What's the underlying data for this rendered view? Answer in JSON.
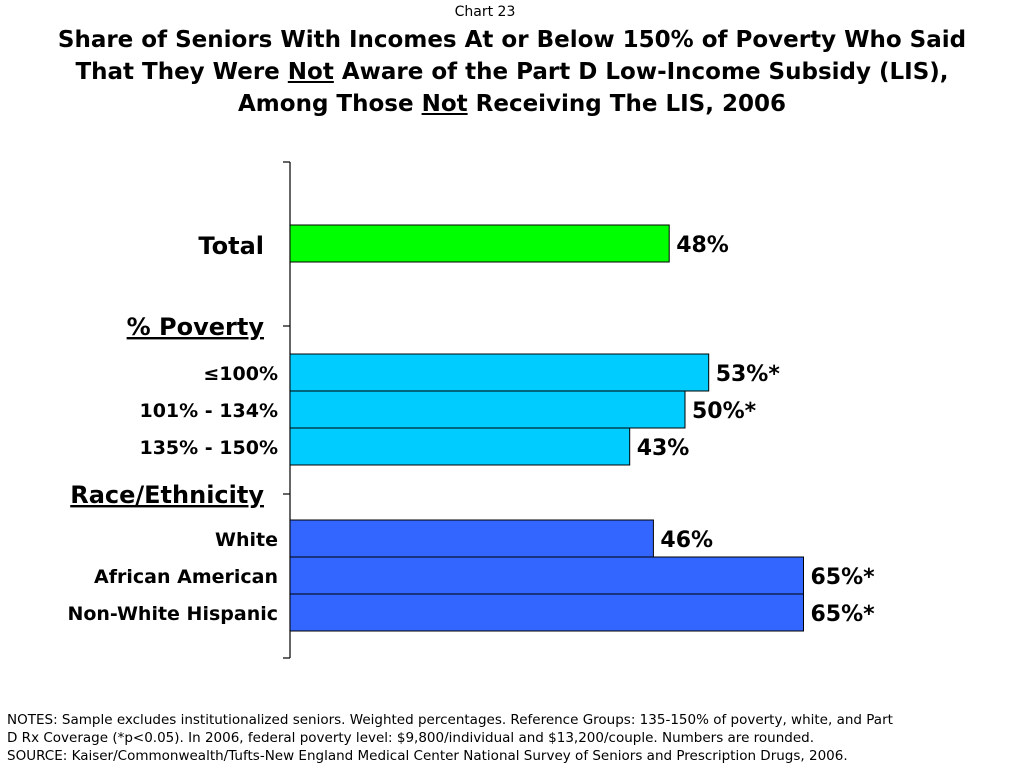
{
  "chart_label": "Chart 23",
  "title": {
    "line1": "Share of Seniors With Incomes At or Below 150% of Poverty Who Said",
    "line2_pre": "That They Were ",
    "line2_em": "Not",
    "line2_post": " Aware of the Part D Low-Income Subsidy (LIS),",
    "line3_pre": "Among Those ",
    "line3_em": "Not",
    "line3_post": " Receiving The LIS, 2006"
  },
  "chart_data": {
    "type": "bar",
    "orientation": "horizontal",
    "sections": [
      {
        "heading": "",
        "color": "#00FF00",
        "bars": [
          {
            "label": "Total",
            "value": 48,
            "display": "48%"
          }
        ]
      },
      {
        "heading": "% Poverty",
        "color": "#00CCFF",
        "bars": [
          {
            "label": "≤100%",
            "value": 53,
            "display": "53%*"
          },
          {
            "label": "101% - 134%",
            "value": 50,
            "display": "50%*"
          },
          {
            "label": "135% - 150%",
            "value": 43,
            "display": "43%"
          }
        ]
      },
      {
        "heading": "Race/Ethnicity",
        "color": "#3366FF",
        "bars": [
          {
            "label": "White",
            "value": 46,
            "display": "46%"
          },
          {
            "label": "African American",
            "value": 65,
            "display": "65%*"
          },
          {
            "label": "Non-White Hispanic",
            "value": 65,
            "display": "65%*"
          }
        ]
      }
    ],
    "xlim": [
      0,
      100
    ],
    "grid": false,
    "legend": "none"
  },
  "notes": {
    "line1": "NOTES: Sample excludes institutionalized seniors. Weighted percentages. Reference Groups: 135-150% of poverty, white, and Part",
    "line2": "D Rx Coverage (*p<0.05). In 2006, federal poverty level: $9,800/individual and $13,200/couple. Numbers are rounded.",
    "source": "SOURCE: Kaiser/Commonwealth/Tufts-New England Medical Center National Survey of Seniors and Prescription Drugs, 2006."
  }
}
